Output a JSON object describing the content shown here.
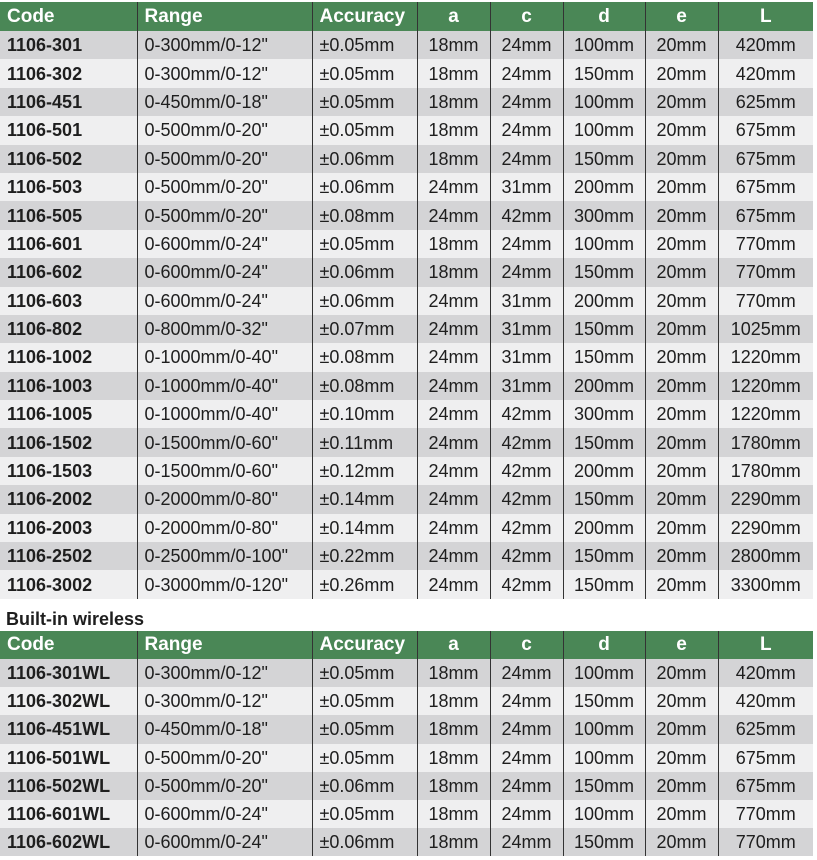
{
  "columns": [
    "Code",
    "Range",
    "Accuracy",
    "a",
    "c",
    "d",
    "e",
    "L"
  ],
  "table1": [
    [
      "1106-301",
      "0-300mm/0-12\"",
      "±0.05mm",
      "18mm",
      "24mm",
      "100mm",
      "20mm",
      "420mm"
    ],
    [
      "1106-302",
      "0-300mm/0-12\"",
      "±0.05mm",
      "18mm",
      "24mm",
      "150mm",
      "20mm",
      "420mm"
    ],
    [
      "1106-451",
      "0-450mm/0-18\"",
      "±0.05mm",
      "18mm",
      "24mm",
      "100mm",
      "20mm",
      "625mm"
    ],
    [
      "1106-501",
      "0-500mm/0-20\"",
      "±0.05mm",
      "18mm",
      "24mm",
      "100mm",
      "20mm",
      "675mm"
    ],
    [
      "1106-502",
      "0-500mm/0-20\"",
      "±0.06mm",
      "18mm",
      "24mm",
      "150mm",
      "20mm",
      "675mm"
    ],
    [
      "1106-503",
      "0-500mm/0-20\"",
      "±0.06mm",
      "24mm",
      "31mm",
      "200mm",
      "20mm",
      "675mm"
    ],
    [
      "1106-505",
      "0-500mm/0-20\"",
      "±0.08mm",
      "24mm",
      "42mm",
      "300mm",
      "20mm",
      "675mm"
    ],
    [
      "1106-601",
      "0-600mm/0-24\"",
      "±0.05mm",
      "18mm",
      "24mm",
      "100mm",
      "20mm",
      "770mm"
    ],
    [
      "1106-602",
      "0-600mm/0-24\"",
      "±0.06mm",
      "18mm",
      "24mm",
      "150mm",
      "20mm",
      "770mm"
    ],
    [
      "1106-603",
      "0-600mm/0-24\"",
      "±0.06mm",
      "24mm",
      "31mm",
      "200mm",
      "20mm",
      "770mm"
    ],
    [
      "1106-802",
      "0-800mm/0-32\"",
      "±0.07mm",
      "24mm",
      "31mm",
      "150mm",
      "20mm",
      "1025mm"
    ],
    [
      "1106-1002",
      "0-1000mm/0-40\"",
      "±0.08mm",
      "24mm",
      "31mm",
      "150mm",
      "20mm",
      "1220mm"
    ],
    [
      "1106-1003",
      "0-1000mm/0-40\"",
      "±0.08mm",
      "24mm",
      "31mm",
      "200mm",
      "20mm",
      "1220mm"
    ],
    [
      "1106-1005",
      "0-1000mm/0-40\"",
      "±0.10mm",
      "24mm",
      "42mm",
      "300mm",
      "20mm",
      "1220mm"
    ],
    [
      "1106-1502",
      "0-1500mm/0-60\"",
      "±0.11mm",
      "24mm",
      "42mm",
      "150mm",
      "20mm",
      "1780mm"
    ],
    [
      "1106-1503",
      "0-1500mm/0-60\"",
      "±0.12mm",
      "24mm",
      "42mm",
      "200mm",
      "20mm",
      "1780mm"
    ],
    [
      "1106-2002",
      "0-2000mm/0-80\"",
      "±0.14mm",
      "24mm",
      "42mm",
      "150mm",
      "20mm",
      "2290mm"
    ],
    [
      "1106-2003",
      "0-2000mm/0-80\"",
      "±0.14mm",
      "24mm",
      "42mm",
      "200mm",
      "20mm",
      "2290mm"
    ],
    [
      "1106-2502",
      "0-2500mm/0-100\"",
      "±0.22mm",
      "24mm",
      "42mm",
      "150mm",
      "20mm",
      "2800mm"
    ],
    [
      "1106-3002",
      "0-3000mm/0-120\"",
      "±0.26mm",
      "24mm",
      "42mm",
      "150mm",
      "20mm",
      "3300mm"
    ]
  ],
  "section2_title": "Built-in wireless",
  "table2": [
    [
      "1106-301WL",
      "0-300mm/0-12\"",
      "±0.05mm",
      "18mm",
      "24mm",
      "100mm",
      "20mm",
      "420mm"
    ],
    [
      "1106-302WL",
      "0-300mm/0-12\"",
      "±0.05mm",
      "18mm",
      "24mm",
      "150mm",
      "20mm",
      "420mm"
    ],
    [
      "1106-451WL",
      "0-450mm/0-18\"",
      "±0.05mm",
      "18mm",
      "24mm",
      "100mm",
      "20mm",
      "625mm"
    ],
    [
      "1106-501WL",
      "0-500mm/0-20\"",
      "±0.05mm",
      "18mm",
      "24mm",
      "100mm",
      "20mm",
      "675mm"
    ],
    [
      "1106-502WL",
      "0-500mm/0-20\"",
      "±0.06mm",
      "18mm",
      "24mm",
      "150mm",
      "20mm",
      "675mm"
    ],
    [
      "1106-601WL",
      "0-600mm/0-24\"",
      "±0.05mm",
      "18mm",
      "24mm",
      "100mm",
      "20mm",
      "770mm"
    ],
    [
      "1106-602WL",
      "0-600mm/0-24\"",
      "±0.06mm",
      "18mm",
      "24mm",
      "150mm",
      "20mm",
      "770mm"
    ]
  ],
  "colors": {
    "header": "#4a8756",
    "row_odd": "#d4d4d6",
    "row_even": "#efeff0"
  }
}
